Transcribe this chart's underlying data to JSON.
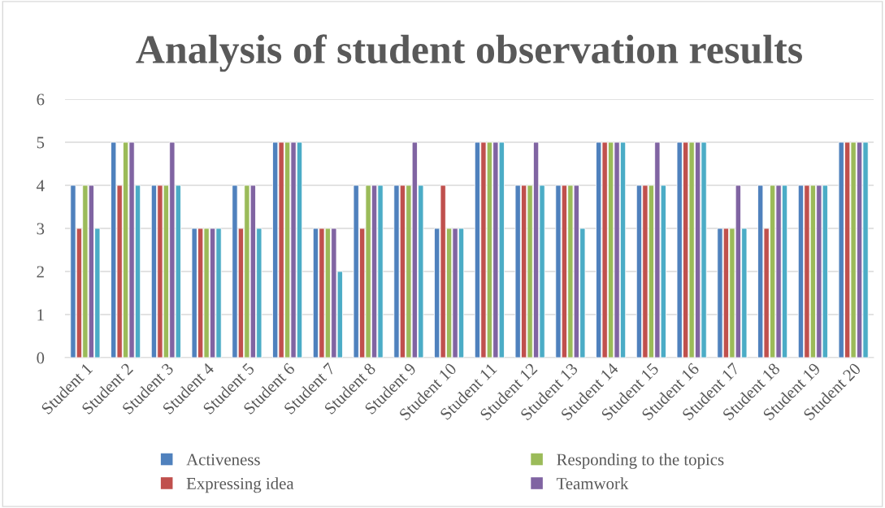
{
  "chart_data": {
    "type": "bar",
    "title": "Analysis of student observation results",
    "categories": [
      "Student 1",
      "Student 2",
      "Student 3",
      "Student 4",
      "Student 5",
      "Student 6",
      "Student 7",
      "Student 8",
      "Student 9",
      "Student 10",
      "Student 11",
      "Student 12",
      "Student 13",
      "Student 14",
      "Student 15",
      "Student 16",
      "Student 17",
      "Student 18",
      "Student 19",
      "Student 20"
    ],
    "series": [
      {
        "name": "Activeness",
        "color": "#4f81bd",
        "values": [
          4,
          5,
          4,
          3,
          4,
          5,
          3,
          4,
          4,
          3,
          5,
          4,
          4,
          5,
          4,
          5,
          3,
          4,
          4,
          5
        ]
      },
      {
        "name": "Expressing idea",
        "color": "#c0504d",
        "values": [
          3,
          4,
          4,
          3,
          3,
          5,
          3,
          3,
          4,
          4,
          5,
          4,
          4,
          5,
          4,
          5,
          3,
          3,
          4,
          5
        ]
      },
      {
        "name": "Responding to the topics",
        "color": "#9bbb59",
        "values": [
          4,
          5,
          4,
          3,
          4,
          5,
          3,
          4,
          4,
          3,
          5,
          4,
          4,
          5,
          4,
          5,
          3,
          4,
          4,
          5
        ]
      },
      {
        "name": "Teamwork",
        "color": "#8064a2",
        "values": [
          4,
          5,
          5,
          3,
          4,
          5,
          3,
          4,
          5,
          3,
          5,
          5,
          4,
          5,
          5,
          5,
          4,
          4,
          4,
          5
        ]
      },
      {
        "color": "#4bacc6",
        "values": [
          3,
          4,
          4,
          3,
          3,
          5,
          2,
          4,
          4,
          3,
          5,
          4,
          3,
          5,
          4,
          5,
          3,
          4,
          4,
          5
        ]
      }
    ],
    "ylim": [
      0,
      6
    ],
    "yticks": [
      0,
      1,
      2,
      3,
      4,
      5,
      6
    ],
    "grid": "y",
    "legend": "bottom"
  }
}
